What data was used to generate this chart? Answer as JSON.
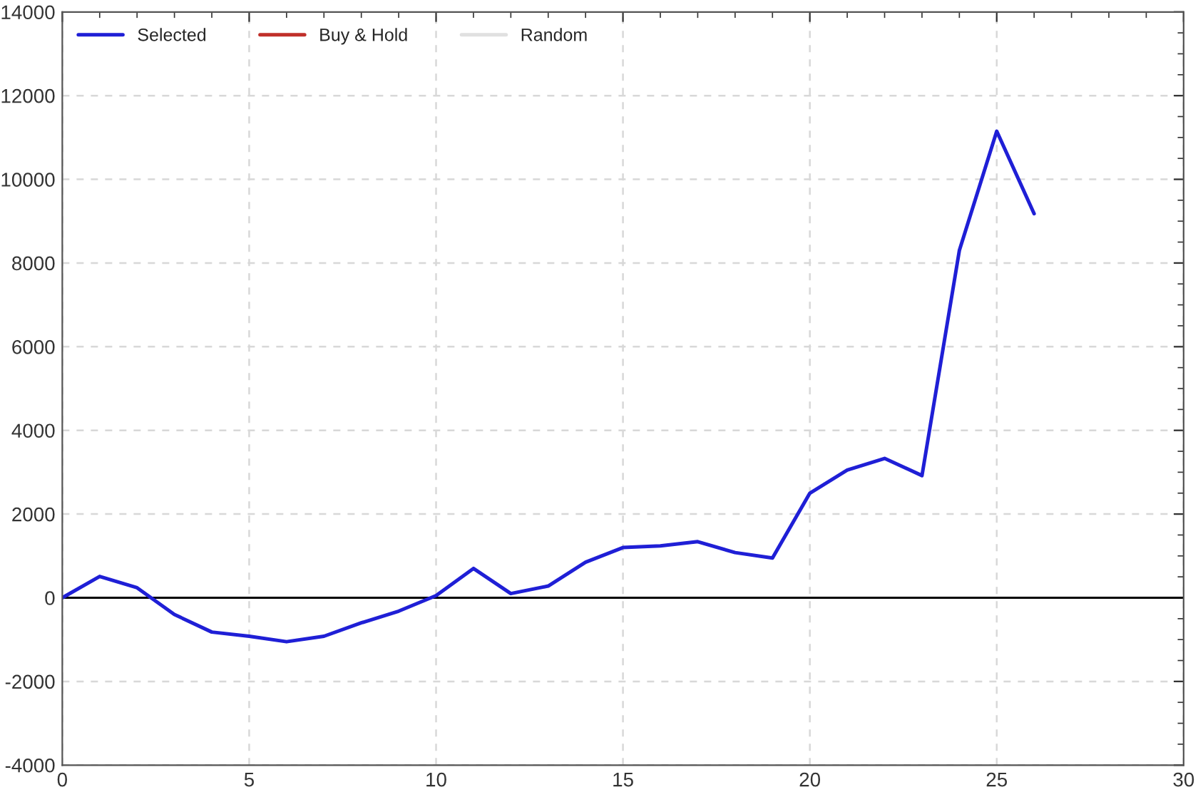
{
  "chart_data": {
    "type": "line",
    "x": [
      0,
      1,
      2,
      3,
      4,
      5,
      6,
      7,
      8,
      9,
      10,
      11,
      12,
      13,
      14,
      15,
      16,
      17,
      18,
      19,
      20,
      21,
      22,
      23,
      24,
      25,
      26
    ],
    "series": [
      {
        "name": "Selected",
        "color": "#1f1fd6",
        "values": [
          0,
          510,
          240,
          -400,
          -820,
          -920,
          -1050,
          -920,
          -600,
          -320,
          50,
          700,
          100,
          280,
          850,
          1200,
          1240,
          1340,
          1080,
          950,
          2500,
          3050,
          3330,
          2920,
          8300,
          11150,
          9180
        ]
      },
      {
        "name": "Buy & Hold",
        "color": "#c0302a",
        "values": [
          null,
          null,
          null,
          null,
          null,
          null,
          null,
          null,
          null,
          null,
          null,
          null,
          null,
          null,
          null,
          null,
          null,
          null,
          null,
          null,
          null,
          null,
          null,
          null,
          null,
          null,
          null
        ]
      },
      {
        "name": "Random",
        "color": "#e0e0e0",
        "values": [
          null,
          null,
          null,
          null,
          null,
          null,
          null,
          null,
          null,
          null,
          null,
          null,
          null,
          null,
          null,
          null,
          null,
          null,
          null,
          null,
          null,
          null,
          null,
          null,
          null,
          null,
          null
        ]
      }
    ],
    "xlim": [
      0,
      30
    ],
    "xticks": [
      0,
      5,
      10,
      15,
      20,
      25,
      30
    ],
    "ylim": [
      -4000,
      14000
    ],
    "yticks": [
      -4000,
      -2000,
      0,
      2000,
      4000,
      6000,
      8000,
      10000,
      12000,
      14000
    ],
    "ref_lines": [
      {
        "axis": "y",
        "value": 0,
        "color": "#000000"
      }
    ],
    "grid": true,
    "legend": "top left",
    "marker": "none",
    "line_style": "solid"
  }
}
